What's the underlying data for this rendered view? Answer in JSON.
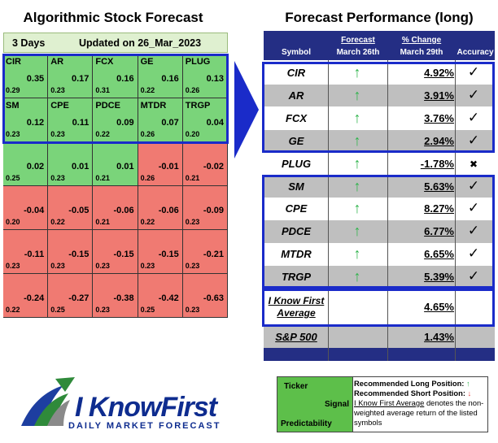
{
  "left_title": "Algorithmic Stock Forecast",
  "right_title": "Forecast Performance (long)",
  "grid_header": {
    "days": "3 Days",
    "updated": "Updated on 26_Mar_2023"
  },
  "grid_rows": [
    [
      {
        "sym": "CIR",
        "sig": "0.35",
        "pred": "0.29",
        "c": "g"
      },
      {
        "sym": "AR",
        "sig": "0.17",
        "pred": "0.23",
        "c": "g"
      },
      {
        "sym": "FCX",
        "sig": "0.16",
        "pred": "0.31",
        "c": "g"
      },
      {
        "sym": "GE",
        "sig": "0.16",
        "pred": "0.22",
        "c": "g"
      },
      {
        "sym": "PLUG",
        "sig": "0.13",
        "pred": "0.26",
        "c": "g"
      }
    ],
    [
      {
        "sym": "SM",
        "sig": "0.12",
        "pred": "0.23",
        "c": "g"
      },
      {
        "sym": "CPE",
        "sig": "0.11",
        "pred": "0.23",
        "c": "g"
      },
      {
        "sym": "PDCE",
        "sig": "0.09",
        "pred": "0.22",
        "c": "g"
      },
      {
        "sym": "MTDR",
        "sig": "0.07",
        "pred": "0.26",
        "c": "g"
      },
      {
        "sym": "TRGP",
        "sig": "0.04",
        "pred": "0.20",
        "c": "g"
      }
    ],
    [
      {
        "sym": "",
        "sig": "0.02",
        "pred": "0.25",
        "c": "g"
      },
      {
        "sym": "",
        "sig": "0.01",
        "pred": "0.23",
        "c": "g"
      },
      {
        "sym": "",
        "sig": "0.01",
        "pred": "0.21",
        "c": "g"
      },
      {
        "sym": "",
        "sig": "-0.01",
        "pred": "0.26",
        "c": "r"
      },
      {
        "sym": "",
        "sig": "-0.02",
        "pred": "0.21",
        "c": "r"
      }
    ],
    [
      {
        "sym": "",
        "sig": "-0.04",
        "pred": "0.20",
        "c": "r"
      },
      {
        "sym": "",
        "sig": "-0.05",
        "pred": "0.22",
        "c": "r"
      },
      {
        "sym": "",
        "sig": "-0.06",
        "pred": "0.21",
        "c": "r"
      },
      {
        "sym": "",
        "sig": "-0.06",
        "pred": "0.22",
        "c": "r"
      },
      {
        "sym": "",
        "sig": "-0.09",
        "pred": "0.23",
        "c": "r"
      }
    ],
    [
      {
        "sym": "",
        "sig": "-0.11",
        "pred": "0.23",
        "c": "r"
      },
      {
        "sym": "",
        "sig": "-0.15",
        "pred": "0.23",
        "c": "r"
      },
      {
        "sym": "",
        "sig": "-0.15",
        "pred": "0.23",
        "c": "r"
      },
      {
        "sym": "",
        "sig": "-0.15",
        "pred": "0.23",
        "c": "r"
      },
      {
        "sym": "",
        "sig": "-0.21",
        "pred": "0.23",
        "c": "r"
      }
    ],
    [
      {
        "sym": "",
        "sig": "-0.24",
        "pred": "0.22",
        "c": "r"
      },
      {
        "sym": "",
        "sig": "-0.27",
        "pred": "0.25",
        "c": "r"
      },
      {
        "sym": "",
        "sig": "-0.38",
        "pred": "0.23",
        "c": "r"
      },
      {
        "sym": "",
        "sig": "-0.42",
        "pred": "0.25",
        "c": "r"
      },
      {
        "sym": "",
        "sig": "-0.63",
        "pred": "0.23",
        "c": "r"
      }
    ]
  ],
  "table_header": {
    "symbol": "Symbol",
    "forecast": "Forecast",
    "forecast_date": "March 26th",
    "change": "% Change",
    "change_date": "March 29th",
    "accuracy": "Accuracy"
  },
  "table_rows": [
    {
      "sym": "CIR",
      "change": "4.92%",
      "acc": "✓"
    },
    {
      "sym": "AR",
      "change": "3.91%",
      "acc": "✓"
    },
    {
      "sym": "FCX",
      "change": "3.76%",
      "acc": "✓"
    },
    {
      "sym": "GE",
      "change": "2.94%",
      "acc": "✓"
    },
    {
      "sym": "PLUG",
      "change": "-1.78%",
      "acc": "✖"
    },
    {
      "sym": "SM",
      "change": "5.63%",
      "acc": "✓"
    },
    {
      "sym": "CPE",
      "change": "8.27%",
      "acc": "✓"
    },
    {
      "sym": "PDCE",
      "change": "6.77%",
      "acc": "✓"
    },
    {
      "sym": "MTDR",
      "change": "6.65%",
      "acc": "✓"
    },
    {
      "sym": "TRGP",
      "change": "5.39%",
      "acc": "✓"
    }
  ],
  "forecast_arrow": "↑",
  "average": {
    "label_line1": "I Know First",
    "label_line2": "Average",
    "value": "4.65%"
  },
  "sp500": {
    "label": "S&P 500",
    "value": "1.43%"
  },
  "logo": {
    "name": "I KnowFirst",
    "tagline": "DAILY MARKET FORECAST"
  },
  "legend": {
    "ticker": "Ticker",
    "signal": "Signal",
    "predictability": "Predictability",
    "long": "Recommended Long Position:",
    "long_symbol": "↑",
    "short": "Recommended Short Position:",
    "short_symbol": "↓",
    "note_link": "I Know First Average",
    "note_rest": "denotes the non-weighted average return of the listed symbols"
  },
  "colors": {
    "up": "#2db34a",
    "down": "#e23030",
    "header": "#242e84",
    "box": "#1a2bc9",
    "green_cell": "#7ad47a",
    "red_cell": "#f07a72"
  }
}
